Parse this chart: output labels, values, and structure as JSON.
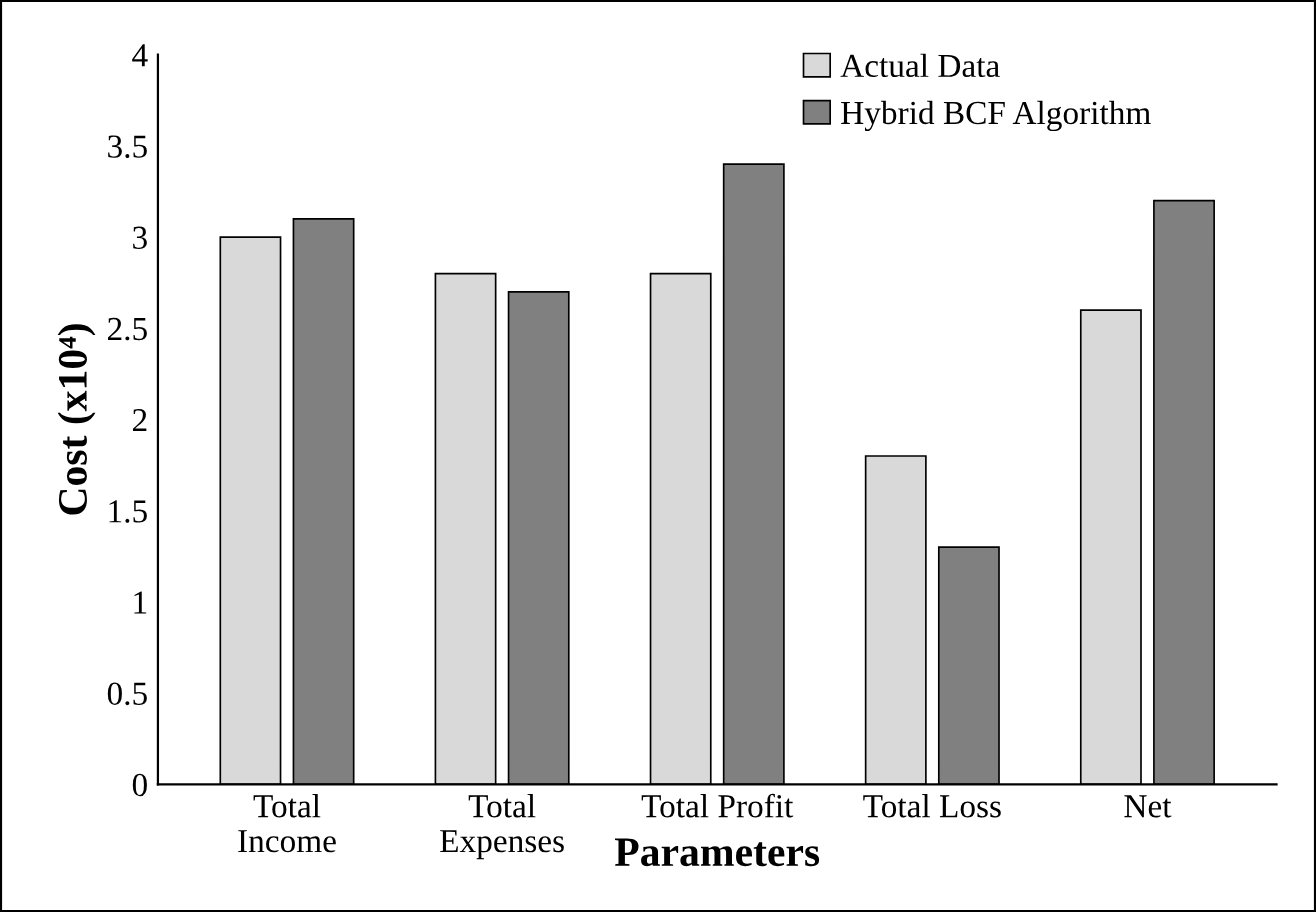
{
  "chart_data": {
    "type": "bar",
    "xlabel": "Parameters",
    "ylabel": "Cost (x10⁴)",
    "categories": [
      "Total\nIncome",
      "Total\nExpenses",
      "Total Profit",
      "Total Loss",
      "Net"
    ],
    "series": [
      {
        "name": "Actual Data",
        "color": "#d9d9d9",
        "values": [
          3.0,
          2.8,
          2.8,
          1.8,
          2.6
        ]
      },
      {
        "name": "Hybrid BCF Algorithm",
        "color": "#808080",
        "values": [
          3.1,
          2.7,
          3.4,
          1.3,
          3.2
        ]
      }
    ],
    "ylim": [
      0,
      4
    ],
    "yticks": [
      0,
      {
        "value": 0.5,
        "label": "0.5"
      },
      1,
      {
        "value": 1.5,
        "label": "1.5"
      },
      2,
      {
        "value": 2.5,
        "label": "2.5"
      },
      3,
      {
        "value": 3.5,
        "label": "3.5"
      },
      4
    ],
    "grid": false,
    "legend": "top right"
  }
}
